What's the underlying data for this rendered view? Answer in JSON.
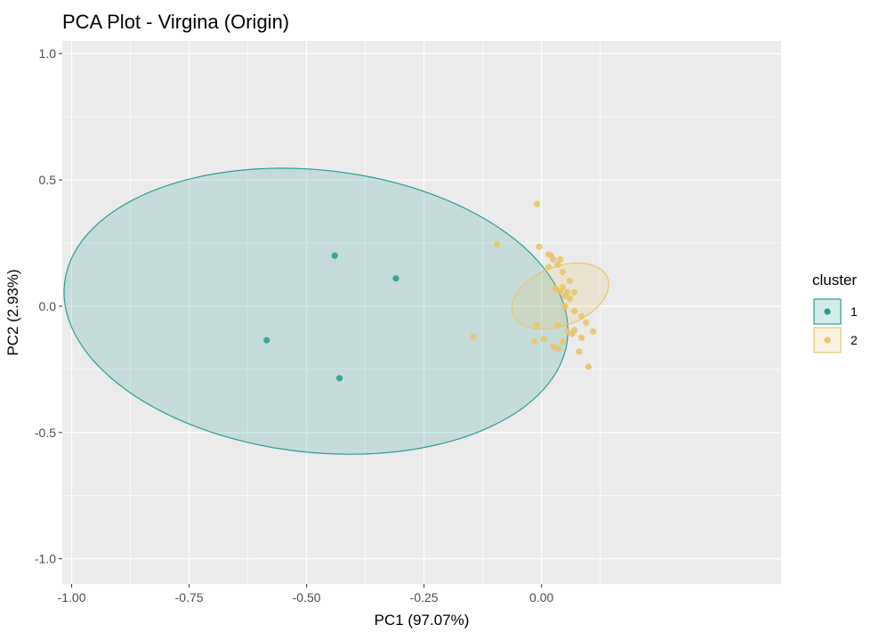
{
  "chart_data": {
    "type": "scatter",
    "title": "PCA Plot -  Virgina (Origin)",
    "xlabel": "PC1 (97.07%)",
    "ylabel": "PC2 (2.93%)",
    "xlim": [
      -1.02,
      0.51
    ],
    "ylim": [
      -1.1,
      1.05
    ],
    "x_ticks": [
      -1.0,
      -0.75,
      -0.5,
      -0.25,
      0.0
    ],
    "x_tick_labels": [
      "-1.00",
      "-0.75",
      "-0.50",
      "-0.25",
      "0.00"
    ],
    "y_ticks": [
      -1.0,
      -0.5,
      0.0,
      0.5,
      1.0
    ],
    "y_tick_labels": [
      "-1.0",
      "-0.5",
      "0.0",
      "0.5",
      "1.0"
    ],
    "grid": true,
    "legend": {
      "title": "cluster",
      "position": "right",
      "entries": [
        {
          "label": "1",
          "color": "#2a9d8f"
        },
        {
          "label": "2",
          "color": "#e9c46a"
        }
      ]
    },
    "series": [
      {
        "name": "1",
        "color": "#2a9d8f",
        "ellipse": {
          "cx": -0.48,
          "cy": -0.02,
          "rx": 0.51,
          "ry": 0.59,
          "angle_deg": 34
        },
        "points": [
          {
            "x": -0.44,
            "y": 0.2
          },
          {
            "x": -0.31,
            "y": 0.11
          },
          {
            "x": -0.585,
            "y": -0.135
          },
          {
            "x": -0.43,
            "y": -0.285
          }
        ]
      },
      {
        "name": "2",
        "color": "#e9c46a",
        "ellipse": {
          "cx": 0.04,
          "cy": 0.04,
          "rx": 0.09,
          "ry": 0.14,
          "angle_deg": -28
        },
        "points": [
          {
            "x": -0.01,
            "y": 0.405
          },
          {
            "x": -0.095,
            "y": 0.245
          },
          {
            "x": -0.145,
            "y": -0.12
          },
          {
            "x": -0.01,
            "y": -0.075
          },
          {
            "x": -0.015,
            "y": -0.14
          },
          {
            "x": -0.005,
            "y": 0.235
          },
          {
            "x": 0.015,
            "y": 0.205
          },
          {
            "x": 0.025,
            "y": 0.185
          },
          {
            "x": 0.02,
            "y": 0.2
          },
          {
            "x": 0.035,
            "y": 0.165
          },
          {
            "x": 0.04,
            "y": 0.185
          },
          {
            "x": 0.015,
            "y": 0.155
          },
          {
            "x": 0.045,
            "y": 0.135
          },
          {
            "x": 0.06,
            "y": 0.1
          },
          {
            "x": 0.03,
            "y": 0.07
          },
          {
            "x": 0.04,
            "y": 0.06
          },
          {
            "x": 0.045,
            "y": 0.075
          },
          {
            "x": 0.05,
            "y": 0.04
          },
          {
            "x": 0.055,
            "y": 0.055
          },
          {
            "x": 0.06,
            "y": 0.03
          },
          {
            "x": 0.07,
            "y": 0.055
          },
          {
            "x": 0.05,
            "y": 0.0
          },
          {
            "x": 0.07,
            "y": -0.02
          },
          {
            "x": 0.085,
            "y": -0.04
          },
          {
            "x": 0.095,
            "y": -0.065
          },
          {
            "x": 0.035,
            "y": -0.075
          },
          {
            "x": 0.055,
            "y": -0.1
          },
          {
            "x": 0.065,
            "y": -0.11
          },
          {
            "x": 0.07,
            "y": -0.095
          },
          {
            "x": 0.085,
            "y": -0.125
          },
          {
            "x": 0.045,
            "y": -0.14
          },
          {
            "x": 0.035,
            "y": -0.17
          },
          {
            "x": 0.025,
            "y": -0.16
          },
          {
            "x": 0.005,
            "y": -0.13
          },
          {
            "x": 0.08,
            "y": -0.18
          },
          {
            "x": 0.1,
            "y": -0.24
          },
          {
            "x": 0.11,
            "y": -0.1
          }
        ]
      }
    ]
  }
}
